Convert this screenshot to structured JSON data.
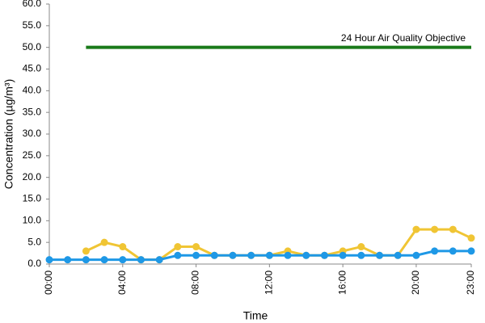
{
  "chart_data": {
    "type": "line",
    "x_label": "Time",
    "y_label": "Concentration (µg/m³)",
    "annotation": "24 Hour Air Quality Objective",
    "categories": [
      "00:00",
      null,
      null,
      null,
      "04:00",
      null,
      null,
      null,
      "08:00",
      null,
      null,
      null,
      "12:00",
      null,
      null,
      null,
      "16:00",
      null,
      null,
      null,
      "20:00",
      null,
      null,
      "23:00"
    ],
    "series": [
      {
        "color": "#1a7a1a",
        "markers": false,
        "values": [
          null,
          null,
          50,
          50,
          50,
          50,
          50,
          50,
          50,
          50,
          50,
          50,
          50,
          50,
          50,
          50,
          50,
          50,
          50,
          50,
          50,
          50,
          50,
          50
        ]
      },
      {
        "color": "#f0c534",
        "markers": true,
        "values": [
          null,
          null,
          3,
          5,
          4,
          1,
          1,
          4,
          4,
          2,
          2,
          2,
          2,
          3,
          2,
          2,
          3,
          4,
          2,
          2,
          8,
          8,
          8,
          6
        ]
      },
      {
        "color": "#1e98e6",
        "markers": true,
        "values": [
          1,
          1,
          1,
          1,
          1,
          1,
          1,
          2,
          2,
          2,
          2,
          2,
          2,
          2,
          2,
          2,
          2,
          2,
          2,
          2,
          2,
          3,
          3,
          3
        ]
      }
    ],
    "ylim": [
      0,
      60
    ],
    "yticks": [
      {
        "value": 0,
        "label": "0.0"
      },
      {
        "value": 5,
        "label": "5.0"
      },
      {
        "value": 10,
        "label": "10.0"
      },
      {
        "value": 15,
        "label": "15.0"
      },
      {
        "value": 20,
        "label": "20.0"
      },
      {
        "value": 25,
        "label": "25.0"
      },
      {
        "value": 30,
        "label": "30.0"
      },
      {
        "value": 35,
        "label": "35.0"
      },
      {
        "value": 40,
        "label": "40.0"
      },
      {
        "value": 45,
        "label": "45.0"
      },
      {
        "value": 50,
        "label": "50.0"
      },
      {
        "value": 55,
        "label": "55.0"
      },
      {
        "value": 60,
        "label": "60.0"
      }
    ],
    "grid": false
  }
}
